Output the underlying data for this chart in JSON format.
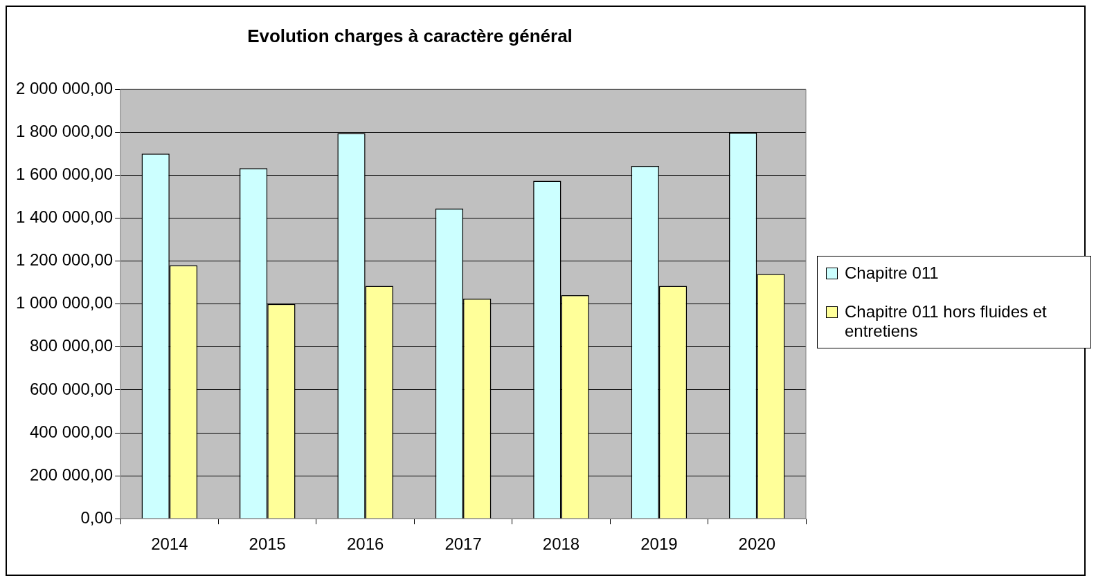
{
  "chart_data": {
    "type": "bar",
    "title": "Evolution charges à caractère général",
    "categories": [
      "2014",
      "2015",
      "2016",
      "2017",
      "2018",
      "2019",
      "2020"
    ],
    "series": [
      {
        "name": "Chapitre 011",
        "color": "#ccffff",
        "values": [
          1700000,
          1633000,
          1795000,
          1445000,
          1574000,
          1643000,
          1798000
        ]
      },
      {
        "name": "Chapitre 011 hors fluides et entretiens",
        "color": "#ffff99",
        "values": [
          1180000,
          1000000,
          1084000,
          1025000,
          1041000,
          1084000,
          1140000
        ]
      }
    ],
    "ylim": [
      0,
      2000000
    ],
    "yticks": [
      {
        "value": 0,
        "label": "0,00"
      },
      {
        "value": 200000,
        "label": "200 000,00"
      },
      {
        "value": 400000,
        "label": "400 000,00"
      },
      {
        "value": 600000,
        "label": "600 000,00"
      },
      {
        "value": 800000,
        "label": "800 000,00"
      },
      {
        "value": 1000000,
        "label": "1 000 000,00"
      },
      {
        "value": 1200000,
        "label": "1 200 000,00"
      },
      {
        "value": 1400000,
        "label": "1 400 000,00"
      },
      {
        "value": 1600000,
        "label": "1 600 000,00"
      },
      {
        "value": 1800000,
        "label": "1 800 000,00"
      },
      {
        "value": 2000000,
        "label": "2 000 000,00"
      }
    ],
    "grid": "y",
    "legend": "right"
  }
}
